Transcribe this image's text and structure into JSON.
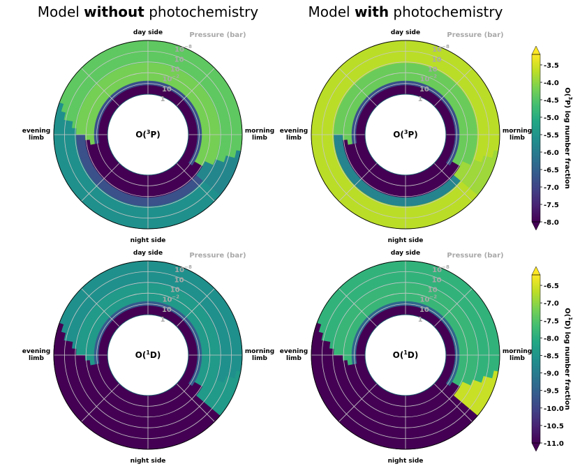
{
  "chart_data": {
    "type": "polar-heatmap",
    "column_titles": [
      {
        "prefix": "Model ",
        "bold": "without",
        "suffix": " photochemistry"
      },
      {
        "prefix": "Model ",
        "bold": "with",
        "suffix": " photochemistry"
      }
    ],
    "direction_labels": {
      "top": "day side",
      "bottom": "night side",
      "left": [
        "evening",
        "limb"
      ],
      "right": [
        "morning",
        "limb"
      ]
    },
    "pressure_axis": {
      "title": "Pressure (bar)",
      "ticks": [
        {
          "base": "10",
          "exp": "−8"
        },
        {
          "base": "10",
          "exp": ""
        },
        {
          "base": "10",
          "exp": ""
        },
        {
          "base": "10",
          "exp": "−2"
        },
        {
          "base": "10",
          "exp": ""
        },
        {
          "base": "1",
          "exp": ""
        }
      ]
    },
    "rows": [
      {
        "species": {
          "pre": "O(",
          "sup": "3",
          "post": "P)"
        },
        "colorbar_label": {
          "pre": "O(",
          "sup": "3",
          "post": "P) log number fraction"
        },
        "colorbar_ticks": [
          "-3.5",
          "-4.0",
          "-4.5",
          "-5.0",
          "-5.5",
          "-6.0",
          "-6.5",
          "-7.0",
          "-7.5",
          "-8.0"
        ],
        "vmin": -8.0,
        "vmax": -3.2,
        "panels": [
          {
            "model": "without photochemistry",
            "day_upper_layer": -4.4,
            "day_mid_layer": -4.2,
            "morning_value": -5.8,
            "night_upper_layer": -5.6,
            "deep_value": -8.0,
            "transition_band": -6.8
          },
          {
            "model": "with photochemistry",
            "day_upper_layer": -3.7,
            "day_mid_layer": -4.3,
            "morning_value": -3.9,
            "night_upper_layer": -3.7,
            "deep_value": -8.0,
            "transition_band": -6.8
          }
        ]
      },
      {
        "species": {
          "pre": "O(",
          "sup": "1",
          "post": "D)"
        },
        "colorbar_label": {
          "pre": "O(",
          "sup": "1",
          "post": "D) log number fraction"
        },
        "colorbar_ticks": [
          "-6.5",
          "-7.0",
          "-7.5",
          "-8.0",
          "-8.5",
          "-9.0",
          "-9.5",
          "-10.0",
          "-10.5",
          "-11.0"
        ],
        "vmin": -11.0,
        "vmax": -6.2,
        "panels": [
          {
            "model": "without photochemistry",
            "day_upper_layer": -8.6,
            "day_mid_layer": -8.4,
            "morning_value": -8.4,
            "night_upper_layer": -11.0,
            "deep_value": -11.0,
            "transition_band": -9.6
          },
          {
            "model": "with photochemistry",
            "day_upper_layer": -7.9,
            "day_mid_layer": -7.8,
            "morning_value": -6.6,
            "night_upper_layer": -11.0,
            "deep_value": -11.0,
            "transition_band": -9.4
          }
        ]
      }
    ]
  }
}
